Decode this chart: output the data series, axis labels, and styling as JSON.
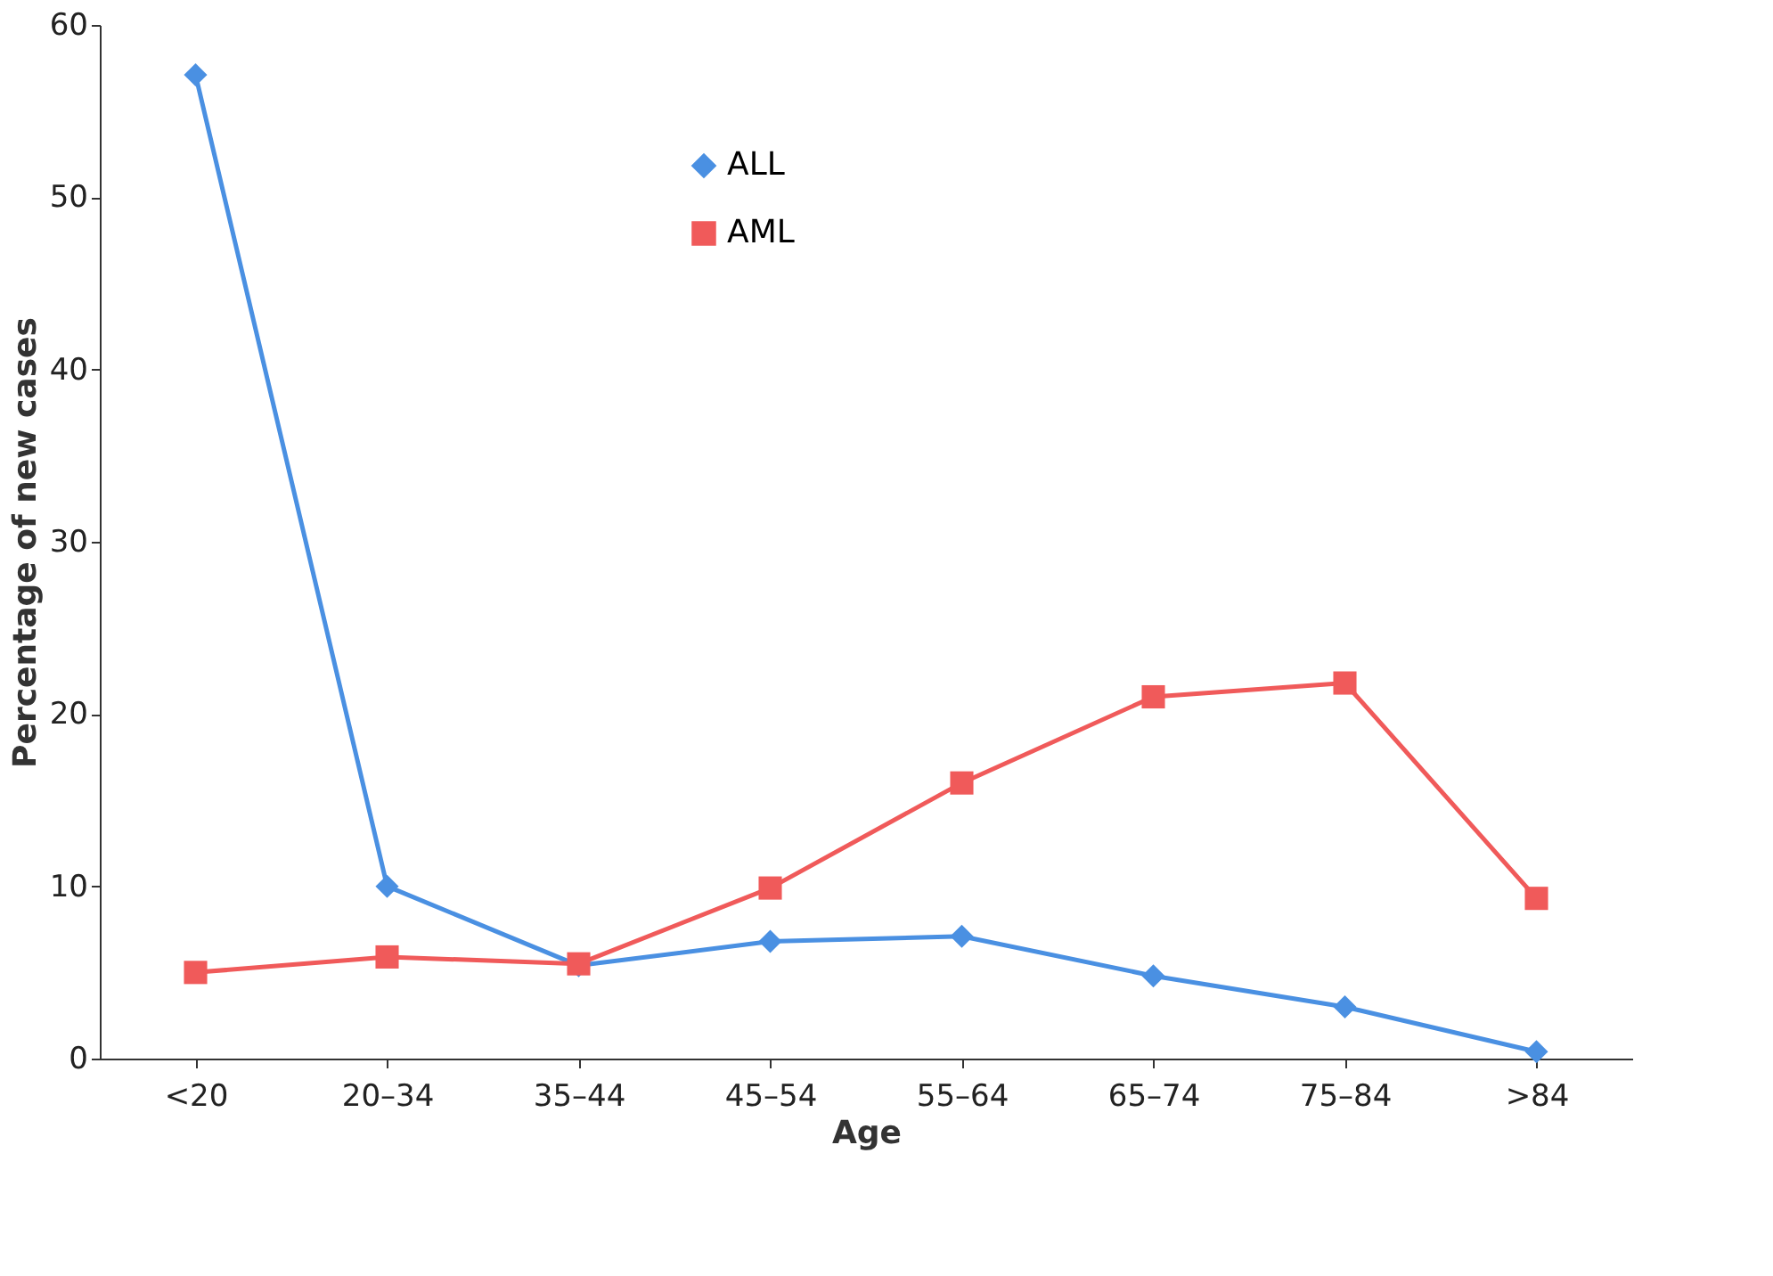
{
  "chart_data": {
    "type": "line",
    "xlabel": "Age",
    "ylabel": "Percentage of new cases",
    "categories": [
      "<20",
      "20–34",
      "35–44",
      "45–54",
      "55–64",
      "65–74",
      "75–84",
      ">84"
    ],
    "series": [
      {
        "name": "ALL",
        "color": "#4a90e2",
        "marker": "diamond",
        "values": [
          57.1,
          10.0,
          5.4,
          6.8,
          7.1,
          4.8,
          3.0,
          0.4
        ]
      },
      {
        "name": "AML",
        "color": "#f05a5a",
        "marker": "square",
        "values": [
          5.0,
          5.9,
          5.5,
          9.9,
          16.0,
          21.0,
          21.8,
          9.3
        ]
      }
    ],
    "ylim": [
      0,
      60
    ],
    "yticks": [
      0,
      10,
      20,
      30,
      40,
      50,
      60
    ],
    "grid": false,
    "legend": "top",
    "line_style": "solid"
  }
}
